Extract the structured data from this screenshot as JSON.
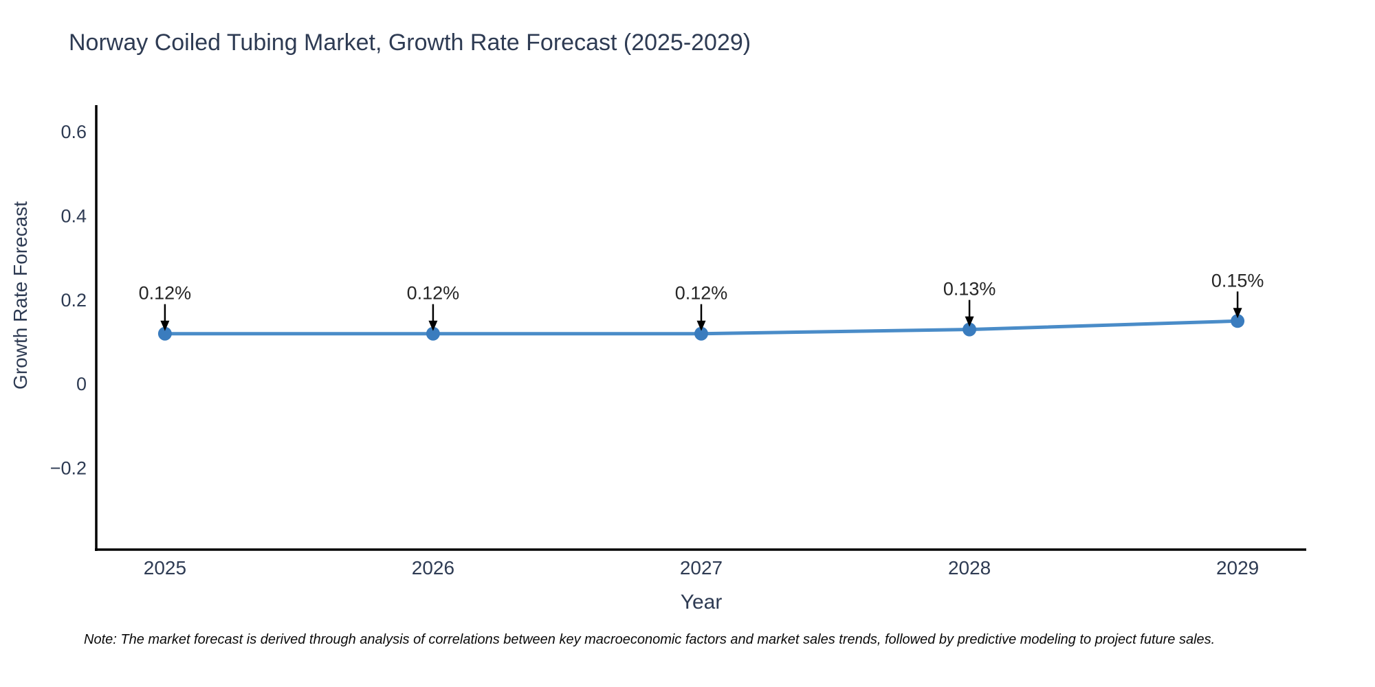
{
  "page": {
    "background_color": "#ffffff"
  },
  "title": {
    "text": "Norway Coiled Tubing Market, Growth Rate Forecast (2025-2029)",
    "color": "#2e3b53"
  },
  "note": {
    "text": "Note: The market forecast is derived through analysis of correlations between key macroeconomic factors and market sales trends, followed by predictive modeling to project future sales."
  },
  "chart_data": {
    "type": "line",
    "title": "Norway Coiled Tubing Market, Growth Rate Forecast (2025-2029)",
    "xlabel": "Year",
    "ylabel": "Growth Rate Forecast",
    "x": [
      2025,
      2026,
      2027,
      2028,
      2029
    ],
    "xtick_labels": [
      "2025",
      "2026",
      "2027",
      "2028",
      "2029"
    ],
    "series": [
      {
        "name": "Growth Rate Forecast",
        "values": [
          0.12,
          0.12,
          0.12,
          0.13,
          0.15
        ]
      }
    ],
    "point_labels": [
      "0.12%",
      "0.12%",
      "0.12%",
      "0.13%",
      "0.15%"
    ],
    "yticks": [
      -0.2,
      0,
      0.2,
      0.4,
      0.6
    ],
    "ytick_labels": [
      "−0.2",
      "0",
      "0.2",
      "0.4",
      "0.6"
    ],
    "xlim": [
      2024.744,
      2029.256
    ],
    "ylim": [
      -0.394,
      0.664
    ],
    "grid": false,
    "legend_position": "none",
    "annotations": "value labels with downward arrows above each point",
    "colors": {
      "line": "#4a8cc8",
      "marker": "#3a7cbe",
      "arrow": "#000000",
      "axis": "#000000",
      "tick_text": "#2e3b53",
      "annotation_text": "#262626"
    }
  }
}
